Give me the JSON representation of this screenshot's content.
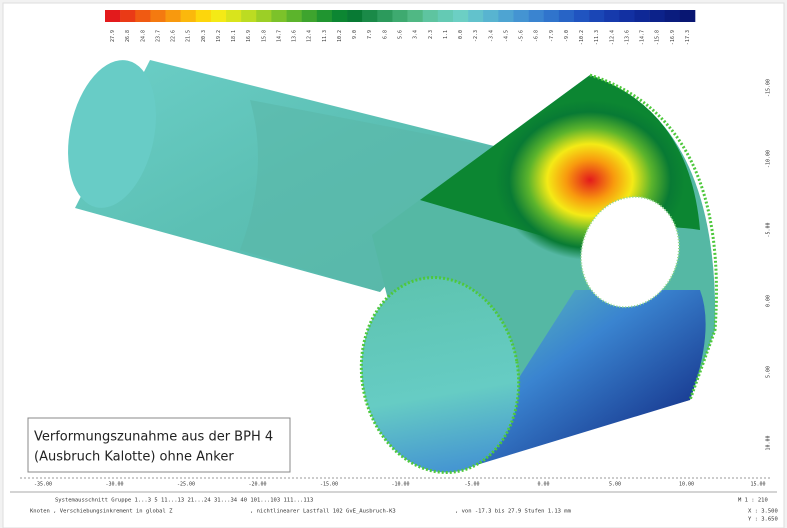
{
  "legend": {
    "items": [
      {
        "label": "27.9",
        "color": "#e31a1c"
      },
      {
        "label": "26.8",
        "color": "#ea3a16"
      },
      {
        "label": "24.8",
        "color": "#f05a12"
      },
      {
        "label": "23.7",
        "color": "#f47a10"
      },
      {
        "label": "22.6",
        "color": "#f8990e"
      },
      {
        "label": "21.5",
        "color": "#fbb80c"
      },
      {
        "label": "20.3",
        "color": "#fdd60c"
      },
      {
        "label": "19.2",
        "color": "#f4ea16"
      },
      {
        "label": "18.1",
        "color": "#d9e41c"
      },
      {
        "label": "16.9",
        "color": "#bcdc22"
      },
      {
        "label": "15.8",
        "color": "#9ccf26"
      },
      {
        "label": "14.7",
        "color": "#7cc22a"
      },
      {
        "label": "13.6",
        "color": "#5cb42c"
      },
      {
        "label": "12.4",
        "color": "#3ea42e"
      },
      {
        "label": "11.3",
        "color": "#209530"
      },
      {
        "label": "10.2",
        "color": "#0c8632"
      },
      {
        "label": "9.0",
        "color": "#087a34"
      },
      {
        "label": "7.9",
        "color": "#1a8a48"
      },
      {
        "label": "6.8",
        "color": "#2c9a5c"
      },
      {
        "label": "5.6",
        "color": "#3eaa70"
      },
      {
        "label": "3.4",
        "color": "#50b884"
      },
      {
        "label": "2.3",
        "color": "#5ec4a0"
      },
      {
        "label": "1.1",
        "color": "#64cab4"
      },
      {
        "label": "0.0",
        "color": "#6ccfc4"
      },
      {
        "label": "-2.3",
        "color": "#62c2cc"
      },
      {
        "label": "-3.4",
        "color": "#58b4d0"
      },
      {
        "label": "-4.5",
        "color": "#4ea4d2"
      },
      {
        "label": "-5.6",
        "color": "#4494d2"
      },
      {
        "label": "-6.8",
        "color": "#3a84d0"
      },
      {
        "label": "-7.9",
        "color": "#3074cc"
      },
      {
        "label": "-9.0",
        "color": "#2864c6"
      },
      {
        "label": "-10.2",
        "color": "#2054c0"
      },
      {
        "label": "-11.3",
        "color": "#1a46b6"
      },
      {
        "label": "-12.4",
        "color": "#163aac"
      },
      {
        "label": "-13.6",
        "color": "#1230a2"
      },
      {
        "label": "-14.7",
        "color": "#0e2896"
      },
      {
        "label": "-15.8",
        "color": "#0c228a"
      },
      {
        "label": "-16.9",
        "color": "#0a1c7e"
      },
      {
        "label": "-17.3",
        "color": "#081672"
      }
    ]
  },
  "bottom_axis": [
    "-35.00",
    "-30.00",
    "-25.00",
    "-20.00",
    "-15.00",
    "-10.00",
    "-5.00",
    "0.00",
    "5.00",
    "10.00",
    "15.00",
    "m"
  ],
  "right_axis": [
    "-15.00",
    "-10.00",
    "-5.00",
    "0.00",
    "5.00",
    "10.00"
  ],
  "caption": {
    "line1": "Verformungszunahme aus der BPH 4",
    "line2": "(Ausbruch Kalotte) ohne Anker"
  },
  "footer": {
    "line1": "Systemausschnitt Gruppe 1...3 5 11...13 21...24 31...34 40 101...103 111...113",
    "line2a": "Knoten , Verschiebungsinkrement in global Z",
    "line2b": ", nichtlinearer Lastfall 102 GvE_Ausbruch-K3",
    "line2c": ", von -17.3 bis 27.9 Stufen 1.13 mm",
    "scale": "M 1 : 210",
    "x": "X : 3.500",
    "y": "Y : 3.650"
  }
}
